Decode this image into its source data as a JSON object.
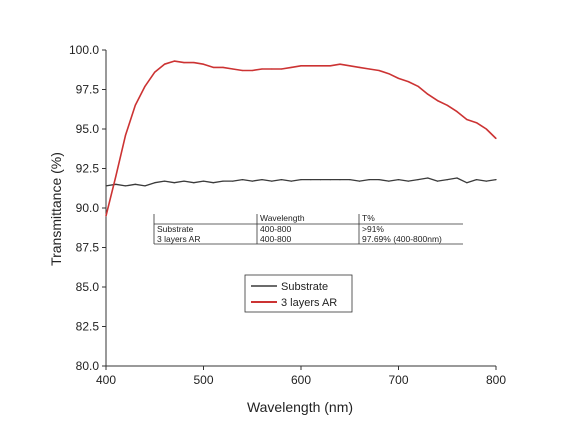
{
  "chart_data": {
    "type": "line",
    "title": "",
    "xlabel": "Wavelength (nm)",
    "ylabel": "Transmittance (%)",
    "xlim": [
      400,
      800
    ],
    "ylim": [
      80.0,
      100.0
    ],
    "x_ticks": [
      "400",
      "500",
      "600",
      "700",
      "800"
    ],
    "y_ticks": [
      "80.0",
      "82.5",
      "85.0",
      "87.5",
      "90.0",
      "92.5",
      "95.0",
      "97.5",
      "100.0"
    ],
    "grid": false,
    "legend_position": "center",
    "series": [
      {
        "name": "Substrate",
        "color": "#3a3a3a",
        "x": [
          400,
          410,
          420,
          430,
          440,
          450,
          460,
          470,
          480,
          490,
          500,
          510,
          520,
          530,
          540,
          550,
          560,
          570,
          580,
          590,
          600,
          610,
          620,
          630,
          640,
          650,
          660,
          670,
          680,
          690,
          700,
          710,
          720,
          730,
          740,
          750,
          760,
          770,
          780,
          790,
          800
        ],
        "y": [
          91.4,
          91.5,
          91.4,
          91.5,
          91.4,
          91.6,
          91.7,
          91.6,
          91.7,
          91.6,
          91.7,
          91.6,
          91.7,
          91.7,
          91.8,
          91.7,
          91.8,
          91.7,
          91.8,
          91.7,
          91.8,
          91.8,
          91.8,
          91.8,
          91.8,
          91.8,
          91.7,
          91.8,
          91.8,
          91.7,
          91.8,
          91.7,
          91.8,
          91.9,
          91.7,
          91.8,
          91.9,
          91.6,
          91.8,
          91.7,
          91.8
        ]
      },
      {
        "name": "3 layers AR",
        "color": "#cc3333",
        "x": [
          400,
          410,
          420,
          430,
          440,
          450,
          460,
          470,
          480,
          490,
          500,
          510,
          520,
          530,
          540,
          550,
          560,
          570,
          580,
          590,
          600,
          610,
          620,
          630,
          640,
          650,
          660,
          670,
          680,
          690,
          700,
          710,
          720,
          730,
          740,
          750,
          760,
          770,
          780,
          790,
          800
        ],
        "y": [
          89.5,
          92.0,
          94.6,
          96.5,
          97.7,
          98.6,
          99.1,
          99.3,
          99.2,
          99.2,
          99.1,
          98.9,
          98.9,
          98.8,
          98.7,
          98.7,
          98.8,
          98.8,
          98.8,
          98.9,
          99.0,
          99.0,
          99.0,
          99.0,
          99.1,
          99.0,
          98.9,
          98.8,
          98.7,
          98.5,
          98.2,
          98.0,
          97.7,
          97.2,
          96.8,
          96.5,
          96.1,
          95.6,
          95.4,
          95.0,
          94.4
        ]
      }
    ],
    "annotation_table": {
      "headers": [
        "",
        "Wavelength",
        "T%"
      ],
      "rows": [
        [
          "Substrate",
          "400-800",
          ">91%"
        ],
        [
          "3 layers AR",
          "400-800",
          "97.69% (400-800nm)"
        ]
      ]
    }
  }
}
